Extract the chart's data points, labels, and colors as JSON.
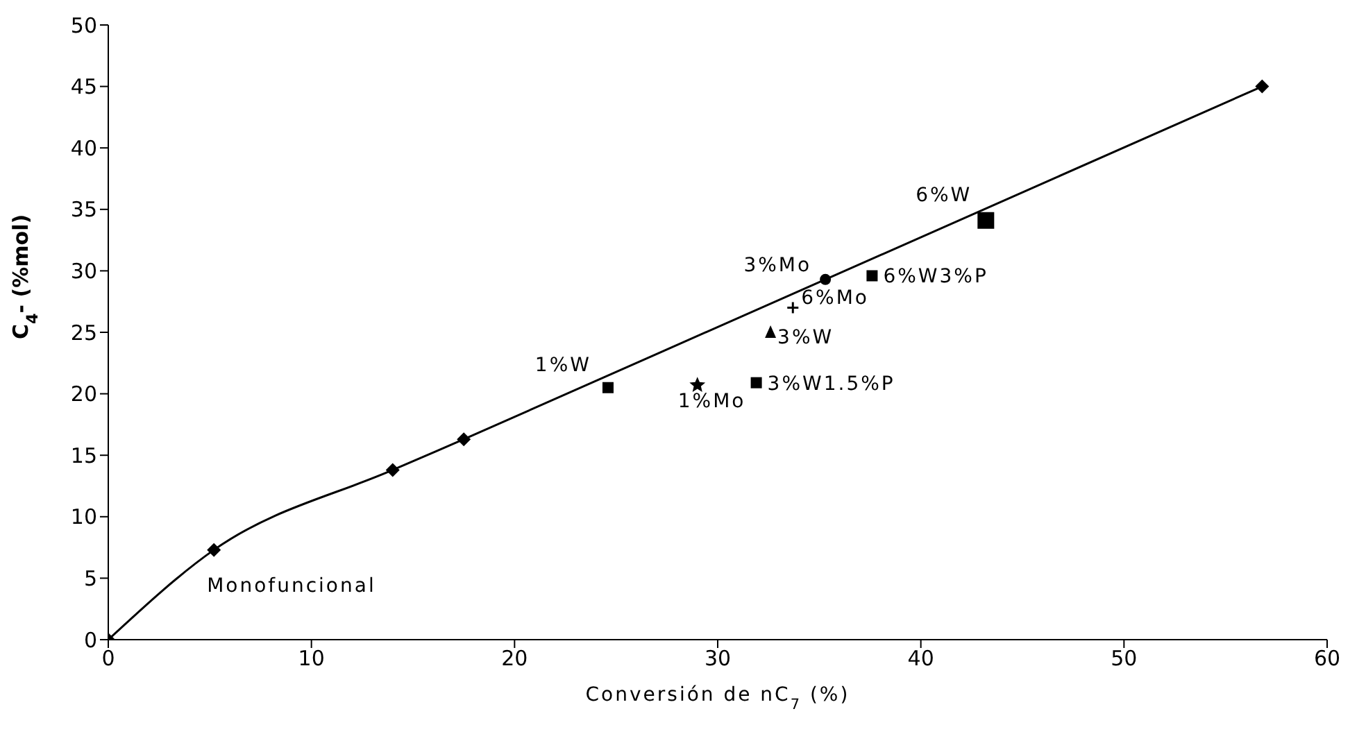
{
  "chart_data": {
    "type": "scatter",
    "xlabel": "Conversión de nC$_{7}$ (%)",
    "ylabel": "C$_{4}$- (%mol)",
    "xlim": [
      0,
      60
    ],
    "xticks": [
      0,
      10,
      20,
      30,
      40,
      50,
      60
    ],
    "ylim": [
      0,
      50
    ],
    "yticks": [
      0,
      5,
      10,
      15,
      20,
      25,
      30,
      35,
      40,
      45,
      50
    ],
    "grid": false,
    "legend": false,
    "series": [
      {
        "name": "Monofuncional",
        "type": "line",
        "marker": "diamond",
        "color": "#000000",
        "x": [
          0,
          5.2,
          14.0,
          17.5,
          56.8
        ],
        "values": [
          0,
          7.3,
          13.8,
          16.3,
          45
        ]
      },
      {
        "name": "1%W",
        "marker": "square",
        "color": "#000000",
        "x": [
          24.6
        ],
        "values": [
          20.5
        ]
      },
      {
        "name": "1%Mo",
        "marker": "star",
        "color": "#000000",
        "x": [
          29.0
        ],
        "values": [
          20.7
        ]
      },
      {
        "name": "3%W1.5%P",
        "marker": "square",
        "color": "#000000",
        "x": [
          31.9
        ],
        "values": [
          20.9
        ]
      },
      {
        "name": "3%W",
        "marker": "triangle",
        "color": "#000000",
        "x": [
          32.6
        ],
        "values": [
          25.0
        ]
      },
      {
        "name": "6%Mo",
        "marker": "cross",
        "color": "#000000",
        "x": [
          33.7
        ],
        "values": [
          27.0
        ]
      },
      {
        "name": "3%Mo",
        "marker": "circle",
        "color": "#000000",
        "x": [
          35.3
        ],
        "values": [
          29.3
        ]
      },
      {
        "name": "6%W3%P",
        "marker": "square",
        "color": "#000000",
        "x": [
          37.6
        ],
        "values": [
          29.6
        ]
      },
      {
        "name": "6%W",
        "marker": "square",
        "color": "#000000",
        "x": [
          43.2
        ],
        "values": [
          34.1
        ]
      }
    ]
  }
}
